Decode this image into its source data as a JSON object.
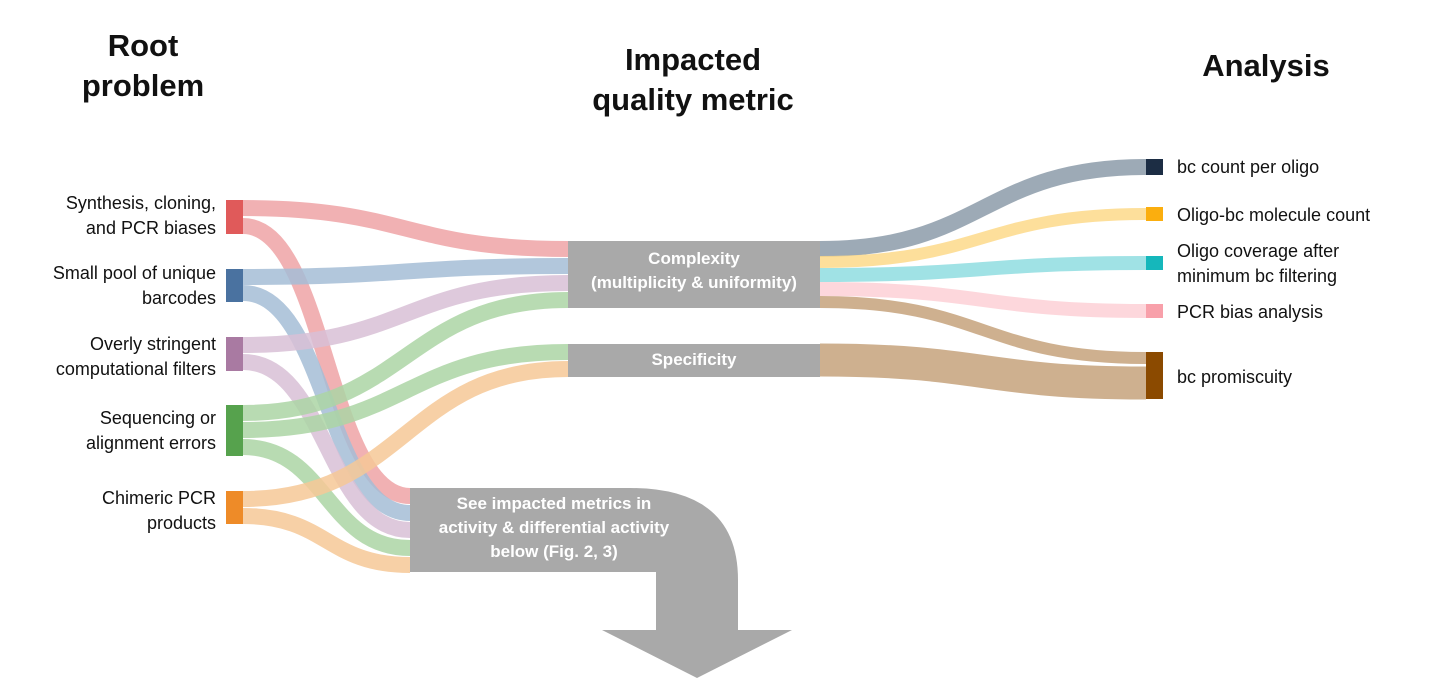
{
  "headers": {
    "root": [
      "Root",
      "problem"
    ],
    "metric": [
      "Impacted",
      "quality metric"
    ],
    "analysis": "Analysis"
  },
  "sources": [
    {
      "id": "synthesis",
      "lines": [
        "Synthesis, cloning,",
        "and PCR biases"
      ],
      "color": "#e05a5a",
      "flow_color": "#eea3a6"
    },
    {
      "id": "pool",
      "lines": [
        "Small pool of unique",
        "barcodes"
      ],
      "color": "#4a72a0",
      "flow_color": "#a5bdd6"
    },
    {
      "id": "filters",
      "lines": [
        "Overly stringent",
        "computational filters"
      ],
      "color": "#a97aa2",
      "flow_color": "#d8bfd6"
    },
    {
      "id": "sequencing",
      "lines": [
        "Sequencing or",
        "alignment errors"
      ],
      "color": "#56a24d",
      "flow_color": "#abd5a5"
    },
    {
      "id": "chimeric",
      "lines": [
        "Chimeric PCR",
        "products"
      ],
      "color": "#ee8b28",
      "flow_color": "#f6c896"
    }
  ],
  "metrics": [
    {
      "id": "complexity",
      "lines": [
        "Complexity",
        "(multiplicity & uniformity)"
      ]
    },
    {
      "id": "specificity",
      "lines": [
        "Specificity"
      ]
    }
  ],
  "downstream": {
    "id": "see-below",
    "lines": [
      "See impacted metrics in",
      "activity & differential activity",
      "below (Fig. 2, 3)"
    ]
  },
  "analyses": [
    {
      "id": "bc-count",
      "lines": [
        "bc count per oligo"
      ],
      "color": "#1c2d44",
      "flow_color": "#8c9ba9"
    },
    {
      "id": "molecule-count",
      "lines": [
        "Oligo-bc molecule count"
      ],
      "color": "#fbae0e",
      "flow_color": "#fdd98a"
    },
    {
      "id": "coverage",
      "lines": [
        "Oligo coverage after",
        "minimum bc filtering"
      ],
      "color": "#15b7bb",
      "flow_color": "#8fdde0"
    },
    {
      "id": "pcr-bias",
      "lines": [
        "PCR bias analysis"
      ],
      "color": "#f8a0aa",
      "flow_color": "#fdd0d6"
    },
    {
      "id": "promiscuity",
      "lines": [
        "bc promiscuity"
      ],
      "color": "#8b4a00",
      "flow_color": "#c5a27b"
    }
  ],
  "links_left": [
    {
      "from": "synthesis",
      "to": "complexity"
    },
    {
      "from": "synthesis",
      "to": "see-below"
    },
    {
      "from": "pool",
      "to": "complexity"
    },
    {
      "from": "pool",
      "to": "see-below"
    },
    {
      "from": "filters",
      "to": "complexity"
    },
    {
      "from": "filters",
      "to": "see-below"
    },
    {
      "from": "sequencing",
      "to": "complexity"
    },
    {
      "from": "sequencing",
      "to": "specificity"
    },
    {
      "from": "sequencing",
      "to": "see-below"
    },
    {
      "from": "chimeric",
      "to": "specificity"
    },
    {
      "from": "chimeric",
      "to": "see-below"
    }
  ],
  "links_right": [
    {
      "from": "complexity",
      "to": "bc-count"
    },
    {
      "from": "complexity",
      "to": "molecule-count"
    },
    {
      "from": "complexity",
      "to": "coverage"
    },
    {
      "from": "complexity",
      "to": "pcr-bias"
    },
    {
      "from": "complexity",
      "to": "promiscuity"
    },
    {
      "from": "specificity",
      "to": "promiscuity"
    }
  ],
  "colors": {
    "metric_box": "#a9a9a9",
    "arrow": "#a9a9a9"
  }
}
